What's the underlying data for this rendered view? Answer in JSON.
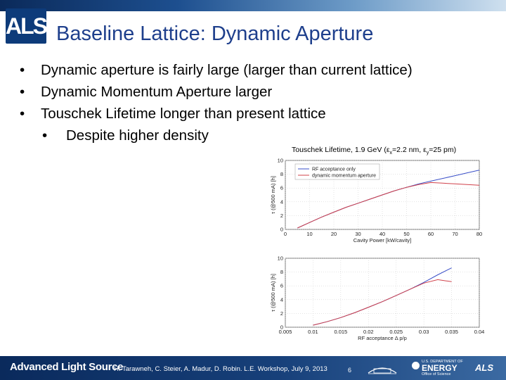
{
  "header": {
    "logo_text": "ALS",
    "title": "Baseline Lattice: Dynamic Aperture"
  },
  "bullets": [
    {
      "text": "Dynamic aperture is fairly large (larger than current lattice)",
      "level": 1
    },
    {
      "text": "Dynamic Momentum Aperture larger",
      "level": 1
    },
    {
      "text": "Touschek Lifetime longer than present lattice",
      "level": 1
    },
    {
      "text": "Despite higher density",
      "level": 2
    }
  ],
  "bullet_symbol": "•",
  "chart_data": [
    {
      "type": "line",
      "title": "Touschek Lifetime, 1.9 GeV (ε",
      "title_sub_x": "x",
      "title_mid": "=2.2 nm, ε",
      "title_sub_y": "y",
      "title_end": "=25 pm)",
      "xlabel": "Cavity Power [kW/cavity]",
      "ylabel": "τ (@500 mA) [h]",
      "xlim": [
        0,
        80
      ],
      "ylim": [
        0,
        10
      ],
      "x_ticks": [
        "0",
        "10",
        "20",
        "30",
        "40",
        "50",
        "60",
        "70",
        "80"
      ],
      "y_ticks": [
        "0",
        "2",
        "4",
        "6",
        "8",
        "10"
      ],
      "legend": [
        "RF acceptance only",
        "dynamic momentum aperture"
      ],
      "legend_position": "top-left",
      "grid": true,
      "series": [
        {
          "name": "RF acceptance only",
          "color": "#3a4fc8",
          "x": [
            5,
            10,
            15,
            20,
            25,
            30,
            35,
            40,
            45,
            50,
            55,
            60,
            65,
            70,
            75,
            80
          ],
          "y": [
            0.2,
            1.0,
            1.8,
            2.5,
            3.2,
            3.8,
            4.4,
            5.0,
            5.6,
            6.1,
            6.6,
            7.0,
            7.4,
            7.8,
            8.2,
            8.6
          ]
        },
        {
          "name": "dynamic momentum aperture",
          "color": "#d0404a",
          "x": [
            5,
            10,
            15,
            20,
            25,
            30,
            35,
            40,
            45,
            50,
            55,
            60,
            65,
            70,
            75,
            80
          ],
          "y": [
            0.2,
            1.0,
            1.8,
            2.5,
            3.2,
            3.8,
            4.4,
            5.0,
            5.6,
            6.1,
            6.5,
            6.8,
            6.7,
            6.6,
            6.5,
            6.4
          ]
        }
      ]
    },
    {
      "type": "line",
      "xlabel": "RF acceptance Δ p/p",
      "ylabel": "τ (@500 mA) [h]",
      "xlim": [
        0.005,
        0.04
      ],
      "ylim": [
        0,
        10
      ],
      "x_ticks": [
        "0.005",
        "0.01",
        "0.015",
        "0.02",
        "0.025",
        "0.03",
        "0.035",
        "0.04"
      ],
      "y_ticks": [
        "0",
        "2",
        "4",
        "6",
        "8",
        "10"
      ],
      "grid": true,
      "series": [
        {
          "color": "#3a4fc8",
          "x": [
            0.01,
            0.0125,
            0.015,
            0.0175,
            0.02,
            0.0225,
            0.025,
            0.0275,
            0.03,
            0.0325,
            0.035
          ],
          "y": [
            0.3,
            0.8,
            1.4,
            2.1,
            2.9,
            3.7,
            4.6,
            5.5,
            6.5,
            7.6,
            8.6
          ]
        },
        {
          "color": "#d0404a",
          "x": [
            0.01,
            0.0125,
            0.015,
            0.0175,
            0.02,
            0.0225,
            0.025,
            0.0275,
            0.03,
            0.0325,
            0.035
          ],
          "y": [
            0.3,
            0.8,
            1.4,
            2.1,
            2.9,
            3.7,
            4.6,
            5.5,
            6.4,
            6.9,
            6.6
          ]
        }
      ]
    }
  ],
  "footer": {
    "brand": "Advanced Light Source",
    "credit": "H. Tarawneh, C. Steier, A. Madur, D. Robin. L.E. Workshop, July 9, 2013",
    "page": "6",
    "doe_dept": "U.S. DEPARTMENT OF",
    "doe_energy": "ENERGY",
    "doe_office": "Office of Science",
    "als_mark": "ALS"
  }
}
